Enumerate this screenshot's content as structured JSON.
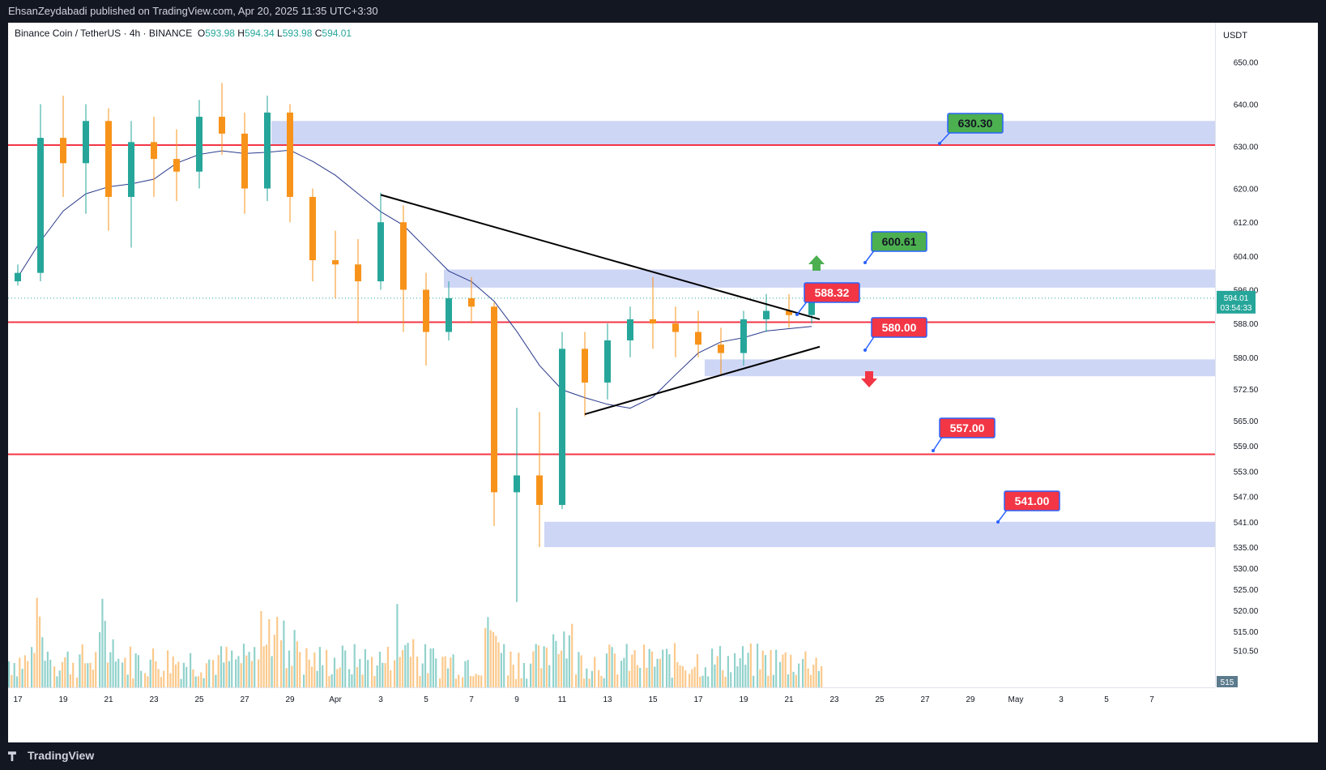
{
  "header": {
    "published": "EhsanZeydabadi published on TradingView.com, Apr 20, 2025 11:35 UTC+3:30"
  },
  "legend": {
    "symbol": "Binance Coin / TetherUS · 4h · BINANCE",
    "o_label": "O",
    "o": "593.98",
    "h_label": "H",
    "h": "594.34",
    "l_label": "L",
    "l": "593.98",
    "c_label": "C",
    "c": "594.01"
  },
  "footer": {
    "brand": "TradingView"
  },
  "colors": {
    "bull": "#26a69a",
    "bear": "#f7931a",
    "level": "#f23645",
    "zone": "#c5cff5",
    "ma": "#2a3a8c",
    "green_label": "#4caf50",
    "red_label": "#f23645"
  },
  "chart_data": {
    "type": "candlestick",
    "currency": "USDT",
    "y_ticks": [
      "650.00",
      "640.00",
      "630.00",
      "620.00",
      "612.00",
      "604.00",
      "596.00",
      "588.00",
      "580.00",
      "572.50",
      "565.00",
      "559.00",
      "553.00",
      "547.00",
      "541.00",
      "535.00",
      "530.00",
      "525.00",
      "520.00",
      "515.00",
      "510.50"
    ],
    "x_ticks": [
      "17",
      "19",
      "21",
      "23",
      "25",
      "27",
      "29",
      "Apr",
      "3",
      "5",
      "7",
      "9",
      "11",
      "13",
      "15",
      "17",
      "19",
      "21",
      "23",
      "25",
      "27",
      "29",
      "May",
      "3",
      "5",
      "7"
    ],
    "last_price": "594.01",
    "countdown": "03:54:33",
    "volume_axis_label": "515",
    "horizontal_levels": [
      630.3,
      588.32,
      557.0
    ],
    "zones": [
      [
        630.3,
        636.0
      ],
      [
        596.5,
        600.8
      ],
      [
        575.5,
        579.5
      ],
      [
        535.0,
        541.0
      ]
    ],
    "labels": [
      {
        "text": "630.30",
        "color": "green",
        "price": 630.3
      },
      {
        "text": "600.61",
        "color": "green",
        "price": 600.61
      },
      {
        "text": "588.32",
        "color": "red",
        "price": 588.32
      },
      {
        "text": "580.00",
        "color": "red",
        "price": 580.0
      },
      {
        "text": "557.00",
        "color": "red",
        "price": 557.0
      },
      {
        "text": "541.00",
        "color": "red",
        "price": 541.0
      }
    ],
    "trendlines": [
      {
        "from": [
          "Apr 1",
          618.5
        ],
        "to": [
          "Apr 20",
          589.0
        ]
      },
      {
        "from": [
          "Apr 10",
          566.5
        ],
        "to": [
          "Apr 20",
          582.5
        ]
      }
    ],
    "arrows": [
      {
        "dir": "up",
        "color": "green"
      },
      {
        "dir": "down",
        "color": "red"
      }
    ],
    "candles": [
      {
        "d": "Mar 16",
        "o": 598,
        "h": 602,
        "l": 597,
        "c": 600
      },
      {
        "d": "Mar 17",
        "o": 600,
        "h": 640,
        "l": 598,
        "c": 632
      },
      {
        "d": "Mar 18",
        "o": 632,
        "h": 642,
        "l": 618,
        "c": 626
      },
      {
        "d": "Mar 19",
        "o": 626,
        "h": 640,
        "l": 614,
        "c": 636
      },
      {
        "d": "Mar 20",
        "o": 636,
        "h": 639,
        "l": 610,
        "c": 618
      },
      {
        "d": "Mar 21",
        "o": 618,
        "h": 636,
        "l": 606,
        "c": 631
      },
      {
        "d": "Mar 22",
        "o": 631,
        "h": 637,
        "l": 618,
        "c": 627
      },
      {
        "d": "Mar 23",
        "o": 627,
        "h": 634,
        "l": 617,
        "c": 624
      },
      {
        "d": "Mar 24",
        "o": 624,
        "h": 641,
        "l": 620,
        "c": 637
      },
      {
        "d": "Mar 25",
        "o": 637,
        "h": 645,
        "l": 628,
        "c": 633
      },
      {
        "d": "Mar 26",
        "o": 633,
        "h": 638,
        "l": 614,
        "c": 620
      },
      {
        "d": "Mar 27",
        "o": 620,
        "h": 642,
        "l": 617,
        "c": 638
      },
      {
        "d": "Mar 28",
        "o": 638,
        "h": 640,
        "l": 612,
        "c": 618
      },
      {
        "d": "Mar 29",
        "o": 618,
        "h": 620,
        "l": 598,
        "c": 603
      },
      {
        "d": "Mar 30",
        "o": 603,
        "h": 610,
        "l": 594,
        "c": 602
      },
      {
        "d": "Mar 31",
        "o": 602,
        "h": 608,
        "l": 588,
        "c": 598
      },
      {
        "d": "Apr 1",
        "o": 598,
        "h": 619,
        "l": 596,
        "c": 612
      },
      {
        "d": "Apr 2",
        "o": 612,
        "h": 616,
        "l": 586,
        "c": 596
      },
      {
        "d": "Apr 3",
        "o": 596,
        "h": 600,
        "l": 578,
        "c": 586
      },
      {
        "d": "Apr 4",
        "o": 586,
        "h": 598,
        "l": 584,
        "c": 594
      },
      {
        "d": "Apr 5",
        "o": 594,
        "h": 599,
        "l": 588,
        "c": 592
      },
      {
        "d": "Apr 6",
        "o": 592,
        "h": 593,
        "l": 540,
        "c": 548
      },
      {
        "d": "Apr 7",
        "o": 548,
        "h": 568,
        "l": 522,
        "c": 552
      },
      {
        "d": "Apr 8",
        "o": 552,
        "h": 567,
        "l": 535,
        "c": 545
      },
      {
        "d": "Apr 9",
        "o": 545,
        "h": 586,
        "l": 544,
        "c": 582
      },
      {
        "d": "Apr 10",
        "o": 582,
        "h": 586,
        "l": 566,
        "c": 574
      },
      {
        "d": "Apr 11",
        "o": 574,
        "h": 588,
        "l": 570,
        "c": 584
      },
      {
        "d": "Apr 12",
        "o": 584,
        "h": 592,
        "l": 580,
        "c": 589
      },
      {
        "d": "Apr 13",
        "o": 589,
        "h": 599,
        "l": 582,
        "c": 588
      },
      {
        "d": "Apr 14",
        "o": 588,
        "h": 592,
        "l": 580,
        "c": 586
      },
      {
        "d": "Apr 15",
        "o": 586,
        "h": 591,
        "l": 580,
        "c": 583
      },
      {
        "d": "Apr 16",
        "o": 583,
        "h": 587,
        "l": 576,
        "c": 581
      },
      {
        "d": "Apr 17",
        "o": 581,
        "h": 591,
        "l": 578,
        "c": 589
      },
      {
        "d": "Apr 18",
        "o": 589,
        "h": 595,
        "l": 586,
        "c": 591
      },
      {
        "d": "Apr 19",
        "o": 591,
        "h": 595,
        "l": 587,
        "c": 590
      },
      {
        "d": "Apr 20",
        "o": 590,
        "h": 595,
        "l": 588,
        "c": 594.01
      }
    ]
  }
}
